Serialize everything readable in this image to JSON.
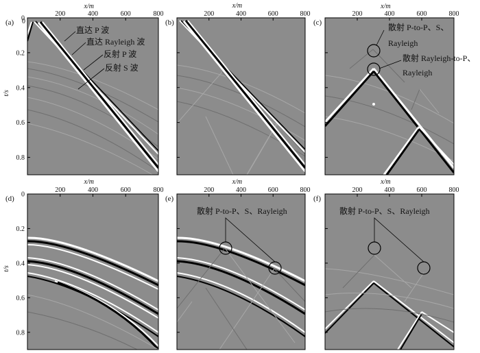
{
  "figure": {
    "x_axis_label": "x/m",
    "y_axis_label": "t/s",
    "x_ticks": [
      "200",
      "400",
      "600",
      "800"
    ],
    "x_axis_origin": "0",
    "y_ticks": [
      "0",
      "0.2",
      "0.4",
      "0.6",
      "0.8"
    ],
    "colors": {
      "panel_bg": "#8c8c8c",
      "wave_dark": "#000000",
      "wave_light": "#ffffff",
      "frame": "#000000"
    }
  },
  "panels": [
    {
      "id": "a",
      "label": "(a)",
      "annotations": [
        "直达 P 波",
        "直达 Rayleigh 波",
        "反射 P 波",
        "反射 S 波"
      ]
    },
    {
      "id": "b",
      "label": "(b)",
      "annotations": []
    },
    {
      "id": "c",
      "label": "(c)",
      "annotations": [
        "散射 P-to-P、S、",
        "Rayleigh",
        "散射 Rayleigh-to-P、",
        "Rayleigh"
      ]
    },
    {
      "id": "d",
      "label": "(d)",
      "annotations": []
    },
    {
      "id": "e",
      "label": "(e)",
      "annotations": [
        "散射 P-to-P、S、Rayleigh"
      ]
    },
    {
      "id": "f",
      "label": "(f)",
      "annotations": [
        "散射 P-to-P、S、Rayleigh"
      ]
    }
  ]
}
